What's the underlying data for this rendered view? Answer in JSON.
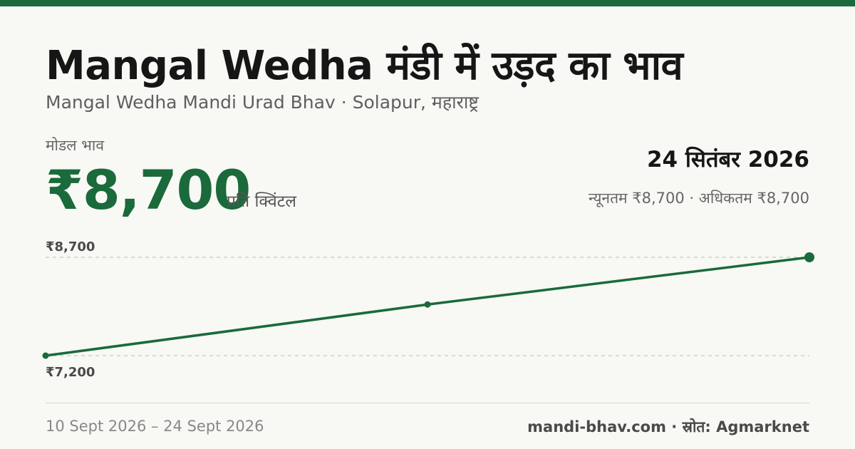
{
  "header": {
    "title": "Mangal Wedha मंडी में उड़द का भाव",
    "subtitle": "Mangal Wedha Mandi Urad Bhav · Solapur, महाराष्ट्र"
  },
  "summary": {
    "model_label": "मोडल भाव",
    "model_price": "₹8,700",
    "unit": "प्रति क्विंटल",
    "date": "24 सितंबर 2026",
    "range": "न्यूनतम ₹8,700 · अधिकतम ₹8,700"
  },
  "chart_data": {
    "type": "line",
    "x": [
      "10 Sept 2026",
      "2026-09-17",
      "24 Sept 2026"
    ],
    "series": [
      {
        "values": [
          7200,
          7980,
          8700
        ]
      }
    ],
    "ylim": [
      7200,
      8700
    ],
    "ytick_labels": [
      "₹8,700",
      "₹7,200"
    ],
    "grid": true,
    "color": "#1a6a3b",
    "gridline_color": "#bdbdb5"
  },
  "footer": {
    "period": "10 Sept 2026 – 24 Sept 2026",
    "source": "mandi-bhav.com · स्रोत: Agmarknet"
  },
  "colors": {
    "accent": "#1a6a3b",
    "background": "#f8f8f4"
  }
}
